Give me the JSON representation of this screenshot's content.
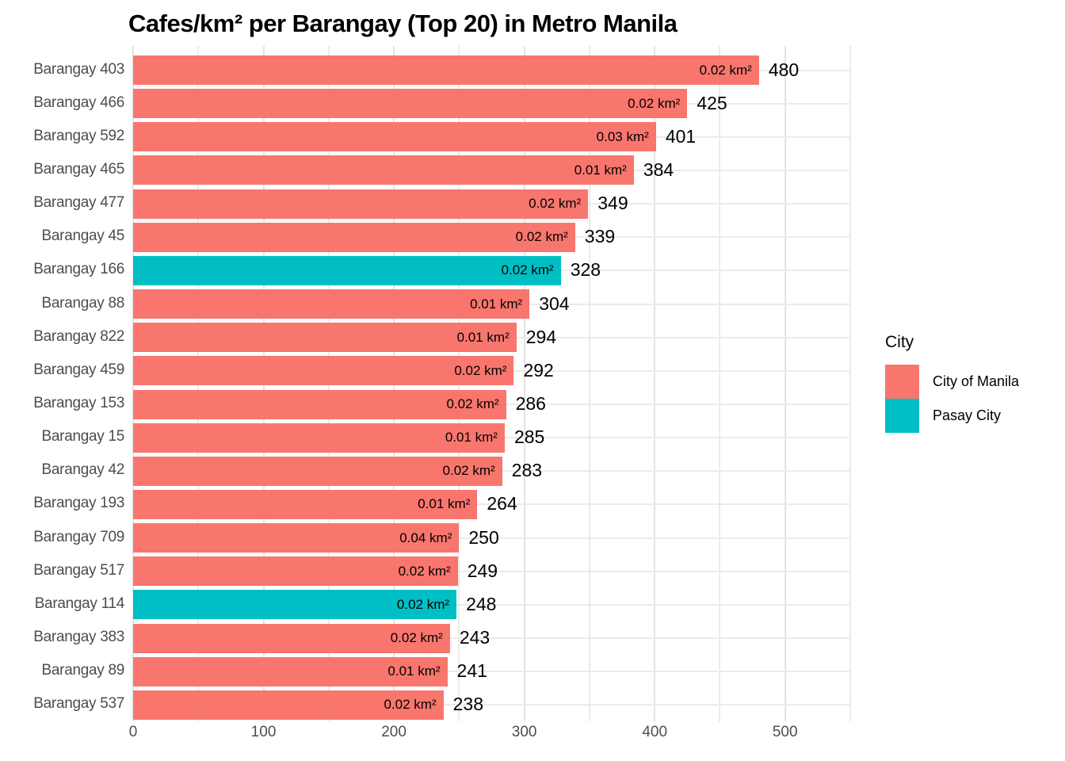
{
  "chart_data": {
    "type": "bar",
    "orientation": "horizontal",
    "title": "Cafes/km² per Barangay (Top 20) in Metro Manila",
    "xlabel": "",
    "ylabel": "",
    "x_axis": {
      "tick_labels": [
        "0",
        "100",
        "200",
        "300",
        "400",
        "500"
      ],
      "tick_values": [
        0,
        100,
        200,
        300,
        400,
        500
      ],
      "minor_step": 50,
      "xlim": [
        0,
        550
      ],
      "grid": true
    },
    "legend": {
      "title": "City",
      "position": "right",
      "entries": [
        {
          "label": "City of Manila",
          "color": "#F8766D",
          "key": "manila"
        },
        {
          "label": "Pasay City",
          "color": "#00BFC4",
          "key": "pasay"
        }
      ]
    },
    "rows": [
      {
        "label": "Barangay 403",
        "value": 480,
        "area_label": "0.02 km²",
        "city": "manila"
      },
      {
        "label": "Barangay 466",
        "value": 425,
        "area_label": "0.02 km²",
        "city": "manila"
      },
      {
        "label": "Barangay 592",
        "value": 401,
        "area_label": "0.03 km²",
        "city": "manila"
      },
      {
        "label": "Barangay 465",
        "value": 384,
        "area_label": "0.01 km²",
        "city": "manila"
      },
      {
        "label": "Barangay 477",
        "value": 349,
        "area_label": "0.02 km²",
        "city": "manila"
      },
      {
        "label": "Barangay 45",
        "value": 339,
        "area_label": "0.02 km²",
        "city": "manila"
      },
      {
        "label": "Barangay 166",
        "value": 328,
        "area_label": "0.02 km²",
        "city": "pasay"
      },
      {
        "label": "Barangay 88",
        "value": 304,
        "area_label": "0.01 km²",
        "city": "manila"
      },
      {
        "label": "Barangay 822",
        "value": 294,
        "area_label": "0.01 km²",
        "city": "manila"
      },
      {
        "label": "Barangay 459",
        "value": 292,
        "area_label": "0.02 km²",
        "city": "manila"
      },
      {
        "label": "Barangay 153",
        "value": 286,
        "area_label": "0.02 km²",
        "city": "manila"
      },
      {
        "label": "Barangay 15",
        "value": 285,
        "area_label": "0.01 km²",
        "city": "manila"
      },
      {
        "label": "Barangay 42",
        "value": 283,
        "area_label": "0.02 km²",
        "city": "manila"
      },
      {
        "label": "Barangay 193",
        "value": 264,
        "area_label": "0.01 km²",
        "city": "manila"
      },
      {
        "label": "Barangay 709",
        "value": 250,
        "area_label": "0.04 km²",
        "city": "manila"
      },
      {
        "label": "Barangay 517",
        "value": 249,
        "area_label": "0.02 km²",
        "city": "manila"
      },
      {
        "label": "Barangay 114",
        "value": 248,
        "area_label": "0.02 km²",
        "city": "pasay"
      },
      {
        "label": "Barangay 383",
        "value": 243,
        "area_label": "0.02 km²",
        "city": "manila"
      },
      {
        "label": "Barangay 89",
        "value": 241,
        "area_label": "0.01 km²",
        "city": "manila"
      },
      {
        "label": "Barangay 537",
        "value": 238,
        "area_label": "0.02 km²",
        "city": "manila"
      }
    ],
    "colors": {
      "manila": "#F8766D",
      "pasay": "#00BFC4",
      "grid_major": "#E4E4E4",
      "grid_minor": "#EBEBEB",
      "axis_text": "#4D4D4D",
      "label_text": "#000000",
      "background": "#FFFFFF"
    }
  }
}
